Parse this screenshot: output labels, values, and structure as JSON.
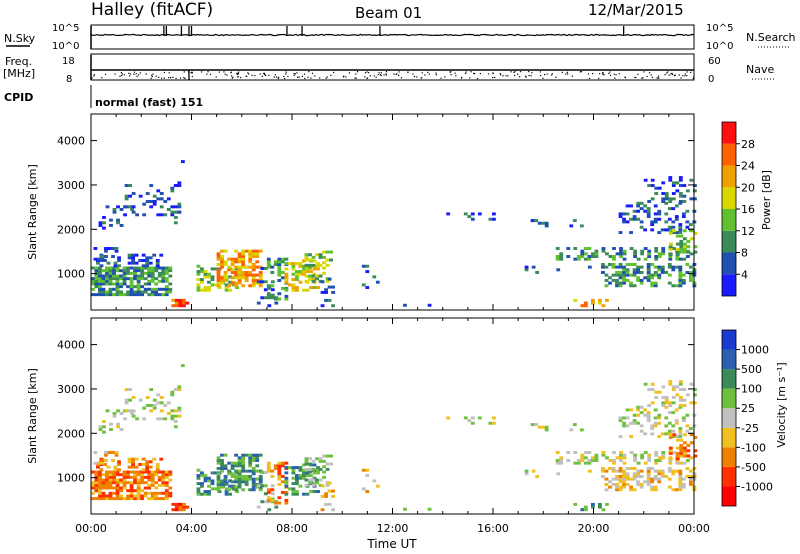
{
  "header": {
    "site": "Halley (fitACF)",
    "beam": "Beam 01",
    "date": "12/Mar/2015"
  },
  "aux_panels": {
    "nsky_label": "N.Sky",
    "nsky_ticks": [
      "10^5",
      "10^0"
    ],
    "nsearch_label": "N.Search",
    "nsearch_ticks": [
      "10^5",
      "10^0"
    ],
    "freq_label": "Freq.",
    "freq_unit": "[MHz]",
    "freq_ticks": [
      "18",
      "8"
    ],
    "nave_label": "Nave",
    "nave_ticks": [
      "60",
      "0"
    ],
    "cpid_label": "CPID",
    "cpid_text": "normal (fast) 151"
  },
  "chart_data": [
    {
      "type": "heatmap",
      "name": "power",
      "ylabel": "Slant Range [km]",
      "xlabel": "",
      "ylim": [
        180,
        4600
      ],
      "xlim": [
        0,
        24
      ],
      "y_ticks": [
        "1000",
        "2000",
        "3000",
        "4000"
      ],
      "colorbar_label": "Power [dB]",
      "colorbar_ticks": [
        "4",
        "8",
        "12",
        "16",
        "20",
        "24",
        "28"
      ],
      "colorbar_colors": [
        "#1a1aff",
        "#2050b0",
        "#3a8a5a",
        "#60c030",
        "#d8d800",
        "#f0a000",
        "#ff6000",
        "#ff1010"
      ]
    },
    {
      "type": "heatmap",
      "name": "velocity",
      "ylabel": "Slant Range [km]",
      "xlabel": "Time UT",
      "ylim": [
        180,
        4600
      ],
      "xlim": [
        0,
        24
      ],
      "y_ticks": [
        "1000",
        "2000",
        "3000",
        "4000"
      ],
      "x_ticks": [
        "00:00",
        "04:00",
        "08:00",
        "12:00",
        "16:00",
        "20:00",
        "00:00"
      ],
      "colorbar_label": "Velocity [m s⁻¹]",
      "colorbar_ticks": [
        "1000",
        "500",
        "100",
        "25",
        "-25",
        "-100",
        "-500",
        "-1000"
      ],
      "colorbar_colors": [
        "#1a3ad0",
        "#2a60b0",
        "#3a8a5a",
        "#70c040",
        "#c0c0c0",
        "#f0c020",
        "#f08000",
        "#ff3000",
        "#ff0000"
      ]
    }
  ]
}
